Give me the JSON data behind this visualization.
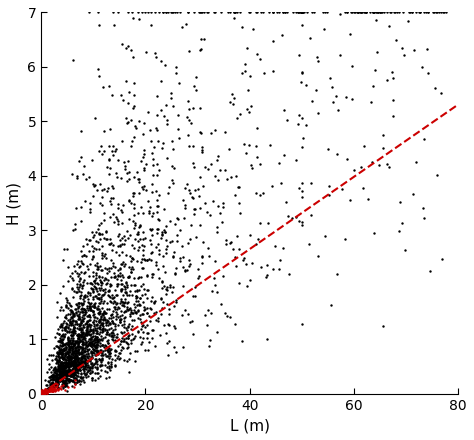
{
  "title": "",
  "xlabel": "L (m)",
  "ylabel": "H (m)",
  "xlim": [
    0,
    80
  ],
  "ylim": [
    0,
    7
  ],
  "xticks": [
    0,
    20,
    40,
    60,
    80
  ],
  "yticks": [
    0,
    1,
    2,
    3,
    4,
    5,
    6,
    7
  ],
  "scatter_color": "#000000",
  "red_scatter_color": "#cc0000",
  "dashed_line_color": "#cc0000",
  "dashed_line_x": [
    0,
    80
  ],
  "dashed_line_y": [
    0,
    5.31
  ],
  "background_color": "#ffffff",
  "marker_size": 3,
  "red_marker_size": 3,
  "seed": 12,
  "n_black_dense": 2500,
  "n_black_sparse": 400,
  "n_red_points": 130
}
